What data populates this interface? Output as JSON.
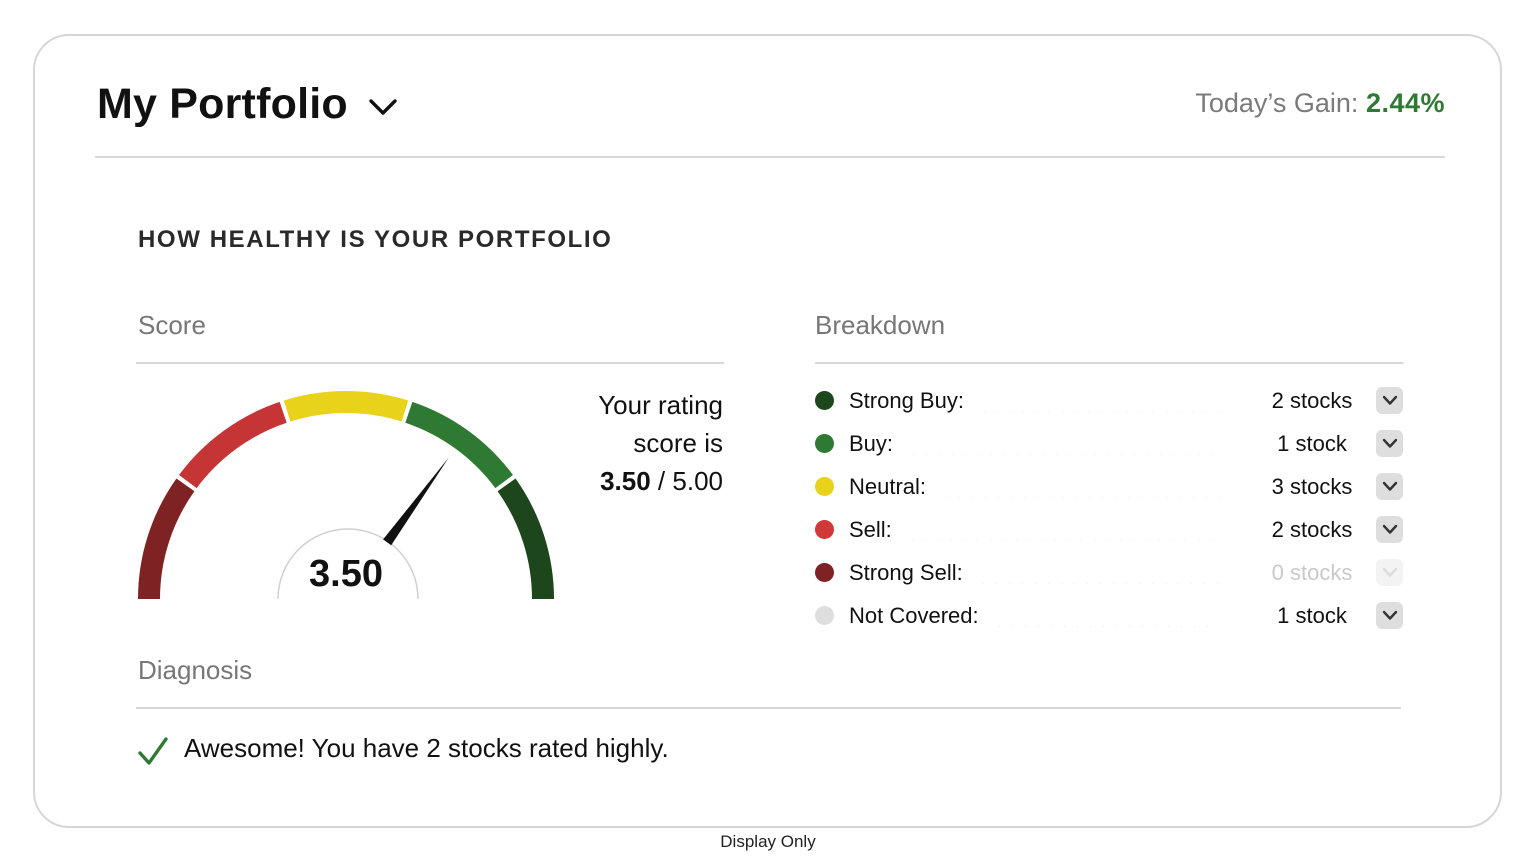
{
  "header": {
    "title": "My Portfolio",
    "gain_label": "Today’s Gain:",
    "gain_value": "2.44%"
  },
  "section_title": "HOW HEALTHY IS YOUR PORTFOLIO",
  "score": {
    "label": "Score",
    "value": "3.50",
    "value_numeric": 3.5,
    "max": 5.0,
    "rating_line1": "Your rating",
    "rating_line2": "score is",
    "rating_value": "3.50",
    "rating_separator": "/",
    "rating_max": "5.00",
    "gauge_segments": [
      "#7f2224",
      "#c63535",
      "#e8d21a",
      "#2f7a33",
      "#1d461d"
    ]
  },
  "breakdown": {
    "label": "Breakdown",
    "rows": [
      {
        "label": "Strong Buy:",
        "count": "2 stocks",
        "color": "#1d461d",
        "enabled": true
      },
      {
        "label": "Buy:",
        "count": "1 stock",
        "color": "#2f7a33",
        "enabled": true
      },
      {
        "label": "Neutral:",
        "count": "3 stocks",
        "color": "#e8d21a",
        "enabled": true
      },
      {
        "label": "Sell:",
        "count": "2 stocks",
        "color": "#d13838",
        "enabled": true
      },
      {
        "label": "Strong Sell:",
        "count": "0 stocks",
        "color": "#7f2224",
        "enabled": false
      },
      {
        "label": "Not Covered:",
        "count": "1 stock",
        "color": "#dedede",
        "enabled": true
      }
    ]
  },
  "diagnosis": {
    "label": "Diagnosis",
    "message": "Awesome! You have 2 stocks rated highly."
  },
  "footer": "Display Only",
  "colors": {
    "gain": "#2f7a33",
    "check": "#2f7a33"
  }
}
